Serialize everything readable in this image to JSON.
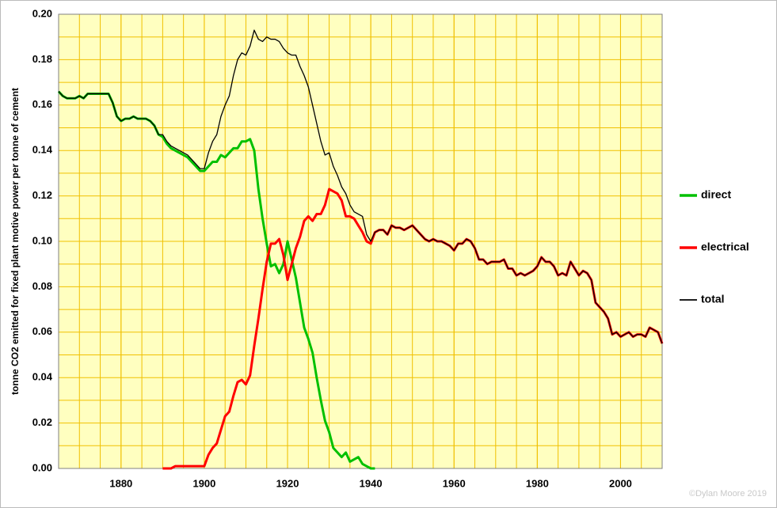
{
  "chart_data": {
    "type": "line",
    "ylabel": "tonne CO2 emitted for fixed plant motive power per tonne of cement",
    "credit": "©Dylan Moore 2019",
    "xlim": [
      1865,
      2010
    ],
    "ylim": [
      0,
      0.2
    ],
    "xticks": [
      1880,
      1900,
      1920,
      1940,
      1960,
      1980,
      2000
    ],
    "yticks": [
      {
        "value": 0,
        "label": "0.00"
      },
      0.02,
      0.04,
      0.06,
      0.08,
      {
        "value": 0.1,
        "label": "0.10"
      },
      0.12,
      0.14,
      0.16,
      0.18,
      {
        "value": 0.2,
        "label": "0.20"
      }
    ],
    "x_gridlines": [
      1870,
      1875,
      1880,
      1885,
      1890,
      1895,
      1900,
      1905,
      1910,
      1915,
      1920,
      1925,
      1930,
      1935,
      1940,
      1945,
      1950,
      1955,
      1960,
      1965,
      1970,
      1975,
      1980,
      1985,
      1990,
      1995,
      2000,
      2005
    ],
    "y_gridlines": [
      0.01,
      0.03,
      0.05,
      0.07,
      0.09,
      0.11,
      0.13,
      0.15,
      0.17,
      0.19
    ],
    "grid": true,
    "grid_color": "#f0c000",
    "background": "#ffffc0",
    "legend": "right",
    "x": [
      1865,
      1866,
      1867,
      1868,
      1869,
      1870,
      1871,
      1872,
      1873,
      1874,
      1875,
      1876,
      1877,
      1878,
      1879,
      1880,
      1881,
      1882,
      1883,
      1884,
      1885,
      1886,
      1887,
      1888,
      1889,
      1890,
      1891,
      1892,
      1893,
      1894,
      1895,
      1896,
      1897,
      1898,
      1899,
      1900,
      1901,
      1902,
      1903,
      1904,
      1905,
      1906,
      1907,
      1908,
      1909,
      1910,
      1911,
      1912,
      1913,
      1914,
      1915,
      1916,
      1917,
      1918,
      1919,
      1920,
      1921,
      1922,
      1923,
      1924,
      1925,
      1926,
      1927,
      1928,
      1929,
      1930,
      1931,
      1932,
      1933,
      1934,
      1935,
      1936,
      1937,
      1938,
      1939,
      1940,
      1941,
      1942,
      1943,
      1944,
      1945,
      1946,
      1947,
      1948,
      1949,
      1950,
      1951,
      1952,
      1953,
      1954,
      1955,
      1956,
      1957,
      1958,
      1959,
      1960,
      1961,
      1962,
      1963,
      1964,
      1965,
      1966,
      1967,
      1968,
      1969,
      1970,
      1971,
      1972,
      1973,
      1974,
      1975,
      1976,
      1977,
      1978,
      1979,
      1980,
      1981,
      1982,
      1983,
      1984,
      1985,
      1986,
      1987,
      1988,
      1989,
      1990,
      1991,
      1992,
      1993,
      1994,
      1995,
      1996,
      1997,
      1998,
      1999,
      2000,
      2001,
      2002,
      2003,
      2004,
      2005,
      2006,
      2007,
      2008,
      2009,
      2010
    ],
    "series": [
      {
        "name": "direct",
        "color": "#00c000",
        "width": 3,
        "values": [
          0.166,
          0.164,
          0.163,
          0.163,
          0.163,
          0.164,
          0.163,
          0.165,
          0.165,
          0.165,
          0.165,
          0.165,
          0.165,
          0.161,
          0.155,
          0.153,
          0.154,
          0.154,
          0.155,
          0.154,
          0.154,
          0.154,
          0.153,
          0.151,
          0.147,
          0.146,
          0.143,
          0.141,
          0.14,
          0.139,
          0.138,
          0.137,
          0.135,
          0.133,
          0.131,
          0.131,
          0.133,
          0.135,
          0.135,
          0.138,
          0.137,
          0.139,
          0.141,
          0.141,
          0.144,
          0.144,
          0.145,
          0.14,
          0.123,
          0.11,
          0.099,
          0.089,
          0.09,
          0.086,
          0.09,
          0.1,
          0.092,
          0.084,
          0.073,
          0.062,
          0.057,
          0.051,
          0.04,
          0.03,
          0.021,
          0.016,
          0.009,
          0.007,
          0.005,
          0.007,
          0.003,
          0.004,
          0.005,
          0.002,
          0.001,
          0,
          0,
          null,
          null,
          null,
          null,
          null,
          null,
          null,
          null,
          null,
          null,
          null,
          null,
          null,
          null,
          null,
          null,
          null,
          null,
          null,
          null,
          null,
          null,
          null,
          null,
          null,
          null,
          null,
          null,
          null,
          null,
          null,
          null,
          null,
          null,
          null,
          null,
          null,
          null,
          null,
          null,
          null,
          null,
          null,
          null,
          null,
          null,
          null,
          null,
          null,
          null,
          null,
          null,
          null,
          null,
          null,
          null,
          null,
          null,
          null,
          null,
          null,
          null,
          null,
          null,
          null,
          null,
          null,
          null,
          null
        ]
      },
      {
        "name": "electrical",
        "color": "#ff0000",
        "width": 3,
        "values": [
          null,
          null,
          null,
          null,
          null,
          null,
          null,
          null,
          null,
          null,
          null,
          null,
          null,
          null,
          null,
          null,
          null,
          null,
          null,
          null,
          null,
          null,
          null,
          null,
          null,
          0,
          0,
          0,
          0.001,
          0.001,
          0.001,
          0.001,
          0.001,
          0.001,
          0.001,
          0.001,
          0.006,
          0.009,
          0.011,
          0.017,
          0.023,
          0.025,
          0.032,
          0.038,
          0.039,
          0.037,
          0.041,
          0.054,
          0.066,
          0.079,
          0.091,
          0.099,
          0.099,
          0.101,
          0.094,
          0.083,
          0.09,
          0.097,
          0.102,
          0.109,
          0.111,
          0.109,
          0.112,
          0.112,
          0.116,
          0.123,
          0.122,
          0.121,
          0.118,
          0.111,
          0.111,
          0.11,
          0.107,
          0.104,
          0.1,
          0.099,
          0.104,
          0.105,
          0.105,
          0.103,
          0.107,
          0.106,
          0.106,
          0.105,
          0.106,
          0.107,
          0.105,
          0.103,
          0.101,
          0.1,
          0.101,
          0.1,
          0.1,
          0.099,
          0.098,
          0.096,
          0.099,
          0.099,
          0.101,
          0.1,
          0.097,
          0.092,
          0.092,
          0.09,
          0.091,
          0.091,
          0.091,
          0.092,
          0.088,
          0.088,
          0.085,
          0.086,
          0.085,
          0.086,
          0.087,
          0.089,
          0.093,
          0.091,
          0.091,
          0.089,
          0.085,
          0.086,
          0.085,
          0.091,
          0.088,
          0.085,
          0.087,
          0.086,
          0.083,
          0.073,
          0.071,
          0.069,
          0.066,
          0.059,
          0.06,
          0.058,
          0.059,
          0.06,
          0.058,
          0.059,
          0.059,
          0.058,
          0.062,
          0.061,
          0.06,
          0.055
        ]
      },
      {
        "name": "total",
        "color": "#000000",
        "width": 1.3,
        "values": [
          0.166,
          0.164,
          0.163,
          0.163,
          0.163,
          0.164,
          0.163,
          0.165,
          0.165,
          0.165,
          0.165,
          0.165,
          0.165,
          0.161,
          0.155,
          0.153,
          0.154,
          0.154,
          0.155,
          0.154,
          0.154,
          0.154,
          0.153,
          0.151,
          0.147,
          0.147,
          0.144,
          0.142,
          0.141,
          0.14,
          0.139,
          0.138,
          0.136,
          0.134,
          0.132,
          0.132,
          0.139,
          0.144,
          0.147,
          0.155,
          0.16,
          0.164,
          0.173,
          0.18,
          0.183,
          0.182,
          0.186,
          0.193,
          0.189,
          0.188,
          0.19,
          0.189,
          0.189,
          0.188,
          0.185,
          0.183,
          0.182,
          0.182,
          0.177,
          0.173,
          0.168,
          0.16,
          0.152,
          0.144,
          0.138,
          0.139,
          0.133,
          0.129,
          0.124,
          0.121,
          0.116,
          0.113,
          0.112,
          0.111,
          0.103,
          0.1,
          0.104,
          0.105,
          0.105,
          0.103,
          0.107,
          0.106,
          0.106,
          0.105,
          0.106,
          0.107,
          0.105,
          0.103,
          0.101,
          0.1,
          0.101,
          0.1,
          0.1,
          0.099,
          0.098,
          0.096,
          0.099,
          0.099,
          0.101,
          0.1,
          0.097,
          0.092,
          0.092,
          0.09,
          0.091,
          0.091,
          0.091,
          0.092,
          0.088,
          0.088,
          0.085,
          0.086,
          0.085,
          0.086,
          0.087,
          0.089,
          0.093,
          0.091,
          0.091,
          0.089,
          0.085,
          0.086,
          0.085,
          0.091,
          0.088,
          0.085,
          0.087,
          0.086,
          0.083,
          0.073,
          0.071,
          0.069,
          0.066,
          0.059,
          0.06,
          0.058,
          0.059,
          0.06,
          0.058,
          0.059,
          0.059,
          0.058,
          0.062,
          0.061,
          0.06,
          0.055
        ]
      }
    ]
  }
}
